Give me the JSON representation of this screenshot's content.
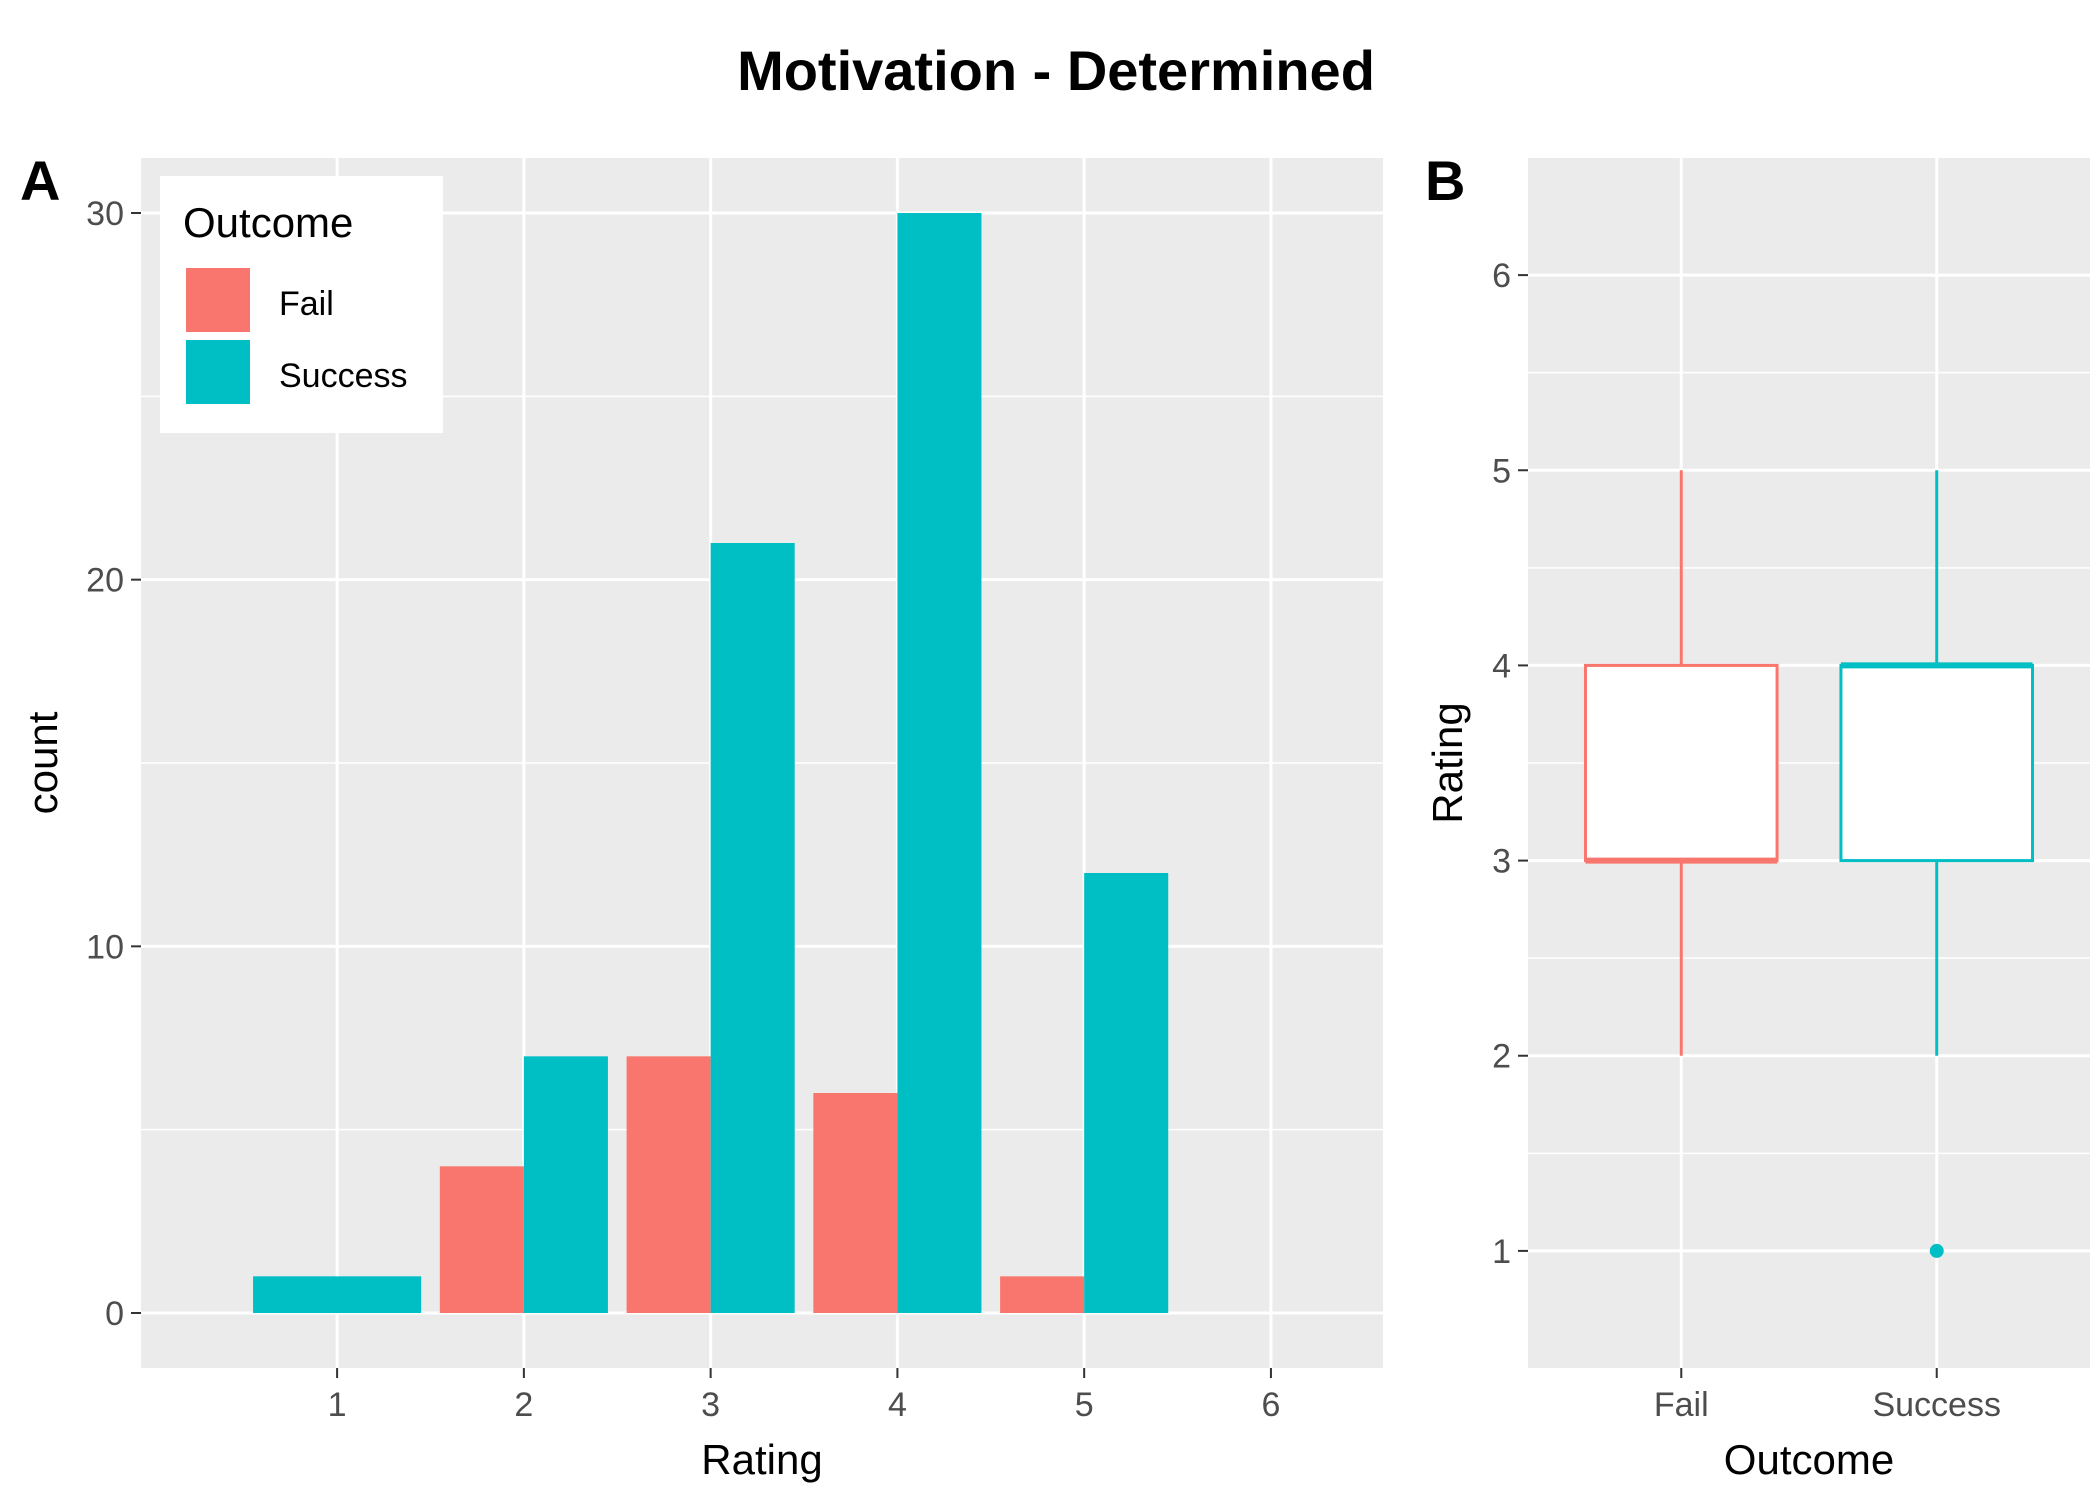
{
  "title": "Motivation - Determined",
  "chart_data": [
    {
      "type": "bar",
      "tag": "A",
      "xlabel": "Rating",
      "ylabel": "count",
      "x_ticks": [
        1,
        2,
        3,
        4,
        5,
        6
      ],
      "y_ticks": [
        0,
        10,
        20,
        30
      ],
      "xlim": [
        -0.05,
        6.6
      ],
      "ylim": [
        -1.5,
        31.5
      ],
      "grid": true,
      "legend": {
        "title": "Outcome",
        "placement": "top-left",
        "entries": [
          "Fail",
          "Success"
        ]
      },
      "colors": {
        "Fail": "#F8766D",
        "Success": "#00BFC4"
      },
      "bars": [
        {
          "rating": 1,
          "outcome": "Success",
          "count": 1,
          "position": "full"
        },
        {
          "rating": 2,
          "outcome": "Fail",
          "count": 4,
          "position": "left"
        },
        {
          "rating": 2,
          "outcome": "Success",
          "count": 7,
          "position": "right"
        },
        {
          "rating": 3,
          "outcome": "Fail",
          "count": 7,
          "position": "left"
        },
        {
          "rating": 3,
          "outcome": "Success",
          "count": 21,
          "position": "right"
        },
        {
          "rating": 4,
          "outcome": "Fail",
          "count": 6,
          "position": "left"
        },
        {
          "rating": 4,
          "outcome": "Success",
          "count": 30,
          "position": "right"
        },
        {
          "rating": 5,
          "outcome": "Fail",
          "count": 1,
          "position": "left"
        },
        {
          "rating": 5,
          "outcome": "Success",
          "count": 12,
          "position": "right"
        }
      ]
    },
    {
      "type": "box",
      "tag": "B",
      "xlabel": "Outcome",
      "ylabel": "Rating",
      "categories": [
        "Fail",
        "Success"
      ],
      "y_ticks": [
        1,
        2,
        3,
        4,
        5,
        6
      ],
      "ylim": [
        0.4,
        6.6
      ],
      "grid": true,
      "colors": {
        "Fail": "#F8766D",
        "Success": "#00BFC4"
      },
      "boxes": [
        {
          "name": "Fail",
          "whisker_low": 2,
          "q1": 3,
          "median": 3,
          "q3": 4,
          "whisker_high": 5,
          "outliers": []
        },
        {
          "name": "Success",
          "whisker_low": 2,
          "q1": 3,
          "median": 4,
          "q3": 4,
          "whisker_high": 5,
          "outliers": [
            1
          ]
        }
      ]
    }
  ]
}
